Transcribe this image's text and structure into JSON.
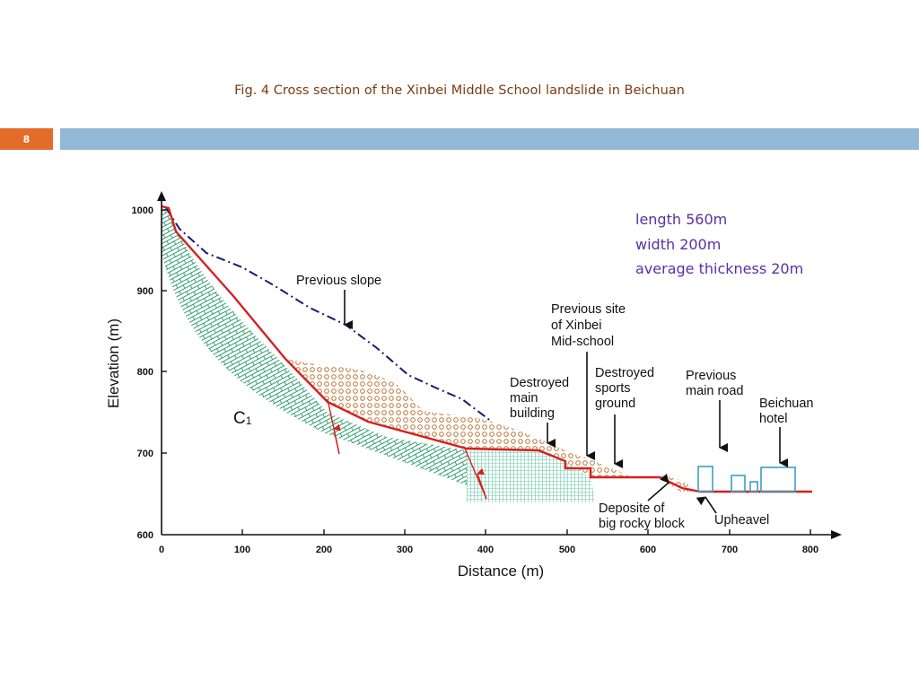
{
  "caption": "Fig. 4 Cross section of the Xinbei Middle School landslide in Beichuan",
  "page_number": "8",
  "stats": [
    "length 560m",
    "width 200m",
    "average thickness 20m"
  ],
  "colors": {
    "accent_orange": "#e36c2a",
    "header_bar": "#93b7d6",
    "stats_text": "#5a2fa8",
    "slide_surface": "#d42020",
    "buildings": "#3aa0c0",
    "bedrock": "#2f9e6e",
    "deposit": "#b5651d",
    "previous_slope": "#1a1a6e"
  },
  "chart": {
    "x_label": "Distance (m)",
    "y_label": "Elevation (m)",
    "x_ticks": [
      "0",
      "100",
      "200",
      "300",
      "400",
      "500",
      "600",
      "700",
      "800"
    ],
    "y_ticks": [
      "600",
      "700",
      "800",
      "900",
      "1000"
    ],
    "zone_label": "C",
    "zone_label_sub": "1",
    "annotations": {
      "previous_slope": "Previous slope",
      "previous_site": [
        "Previous site",
        "of Xinbei",
        "Mid-school"
      ],
      "destroyed_main_building": [
        "Destroyed",
        "main",
        "building"
      ],
      "destroyed_sports_ground": [
        "Destroyed",
        "sports",
        "ground"
      ],
      "previous_main_road": [
        "Previous",
        "main road"
      ],
      "beichuan_hotel": [
        "Beichuan",
        "hotel"
      ],
      "deposite": [
        "Deposite of",
        "big rocky block"
      ],
      "upheavel": "Upheavel"
    }
  }
}
